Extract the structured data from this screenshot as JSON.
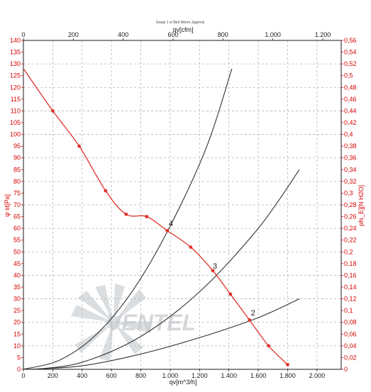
{
  "chart_data": {
    "type": "line",
    "title": "Grasp 1 et Berl Werre Jagervis",
    "top_axis": {
      "label": "qv[cfm]",
      "range": [
        0,
        1274
      ],
      "ticks": [
        "0",
        "200",
        "400",
        "600",
        "800",
        "1.000",
        "1.200"
      ],
      "tick_values": [
        0,
        200,
        400,
        600,
        800,
        1000,
        1200
      ]
    },
    "bottom_axis": {
      "label": "qv[m^3/h]",
      "range": [
        0,
        2165
      ],
      "ticks": [
        "0",
        "200",
        "400",
        "600",
        "800",
        "1.000",
        "1.200",
        "1.400",
        "1.600",
        "1.800",
        "2.000"
      ],
      "tick_values": [
        0,
        200,
        400,
        600,
        800,
        1000,
        1200,
        1400,
        1600,
        1800,
        2000
      ]
    },
    "left_axis": {
      "label": "ψ st[Pa]",
      "range": [
        0,
        140
      ],
      "tick_step": 5
    },
    "right_axis": {
      "label": "pfs_E][N H2O]",
      "range": [
        0,
        0.56
      ],
      "tick_step": 0.02,
      "ticks": [
        "0",
        "0,02",
        "0,04",
        "0,06",
        "0,08",
        "0,1",
        "0,12",
        "0,14",
        "0,16",
        "0,18",
        "0,2",
        "0,22",
        "0,24",
        "0,26",
        "0,28",
        "0,3",
        "0,32",
        "0,34",
        "0,36",
        "0,38",
        "0,4",
        "0,42",
        "0,44",
        "0,46",
        "0,48",
        "0,5",
        "0,52",
        "0,54",
        "0,56"
      ]
    },
    "grid": true,
    "series": [
      {
        "color": "#e0322a",
        "markers": true,
        "x": [
          0,
          200,
          380,
          560,
          700,
          840,
          980,
          1140,
          1290,
          1410,
          1540,
          1670,
          1800
        ],
        "y": [
          128,
          110,
          95,
          76,
          66,
          65,
          59,
          52,
          42,
          32,
          21,
          10,
          2
        ]
      },
      {
        "color": "#333333",
        "x": [
          0,
          250,
          500,
          750,
          1000,
          1250,
          1420
        ],
        "y": [
          0,
          4,
          15,
          34,
          61,
          95,
          128
        ]
      },
      {
        "color": "#333333",
        "x": [
          80,
          400,
          800,
          1200,
          1600,
          1880
        ],
        "y": [
          0,
          3,
          14,
          33,
          60,
          85
        ]
      },
      {
        "color": "#333333",
        "x": [
          40,
          400,
          800,
          1200,
          1600,
          1880
        ],
        "y": [
          0,
          1.5,
          6.5,
          13.5,
          22,
          30
        ]
      }
    ],
    "annotations": [
      {
        "text": "4",
        "x": 1000,
        "y": 60
      },
      {
        "text": "3",
        "x": 1300,
        "y": 42
      },
      {
        "text": "2",
        "x": 1560,
        "y": 22
      }
    ],
    "watermark": "VENTEL",
    "legend": "none",
    "colors": {
      "primary_curve": "#e0322a",
      "axis_left": "#d40000",
      "grid": "#b5b5b5",
      "curves": "#333333"
    }
  }
}
